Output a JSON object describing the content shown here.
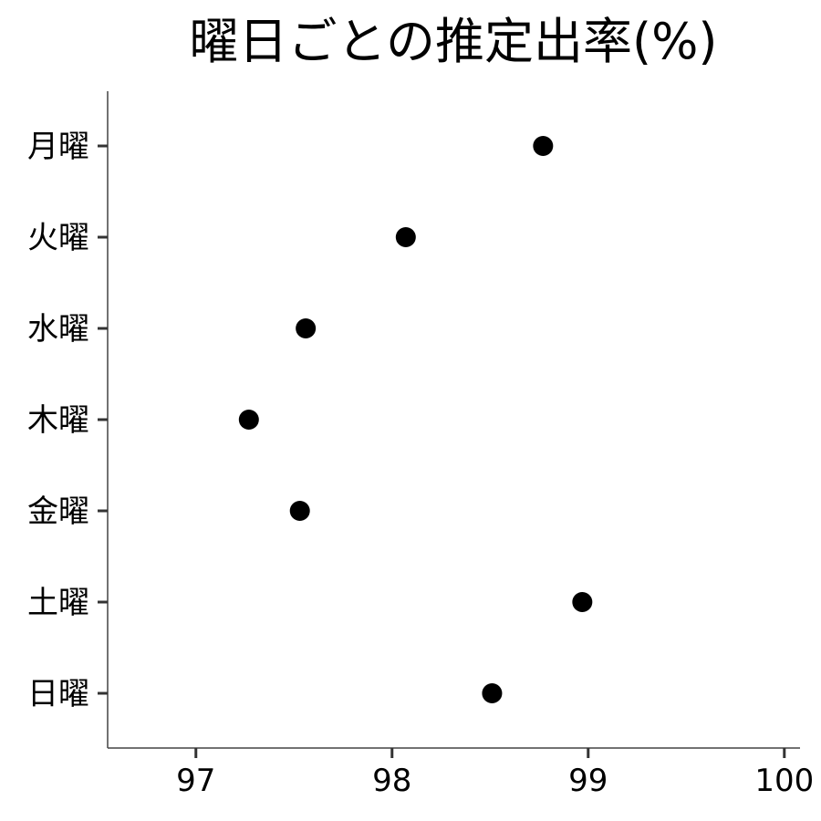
{
  "chart_data": {
    "type": "scatter",
    "title": "曜日ごとの推定出率(%)",
    "xlabel": "",
    "ylabel": "",
    "xlim": [
      96.55,
      100.08
    ],
    "x_ticks": [
      "97",
      "98",
      "99",
      "100"
    ],
    "grid": false,
    "legend": "none",
    "point_color": "#000000",
    "categories": [
      "月曜",
      "火曜",
      "水曜",
      "木曜",
      "金曜",
      "土曜",
      "日曜"
    ],
    "values": [
      98.77,
      98.07,
      97.56,
      97.27,
      97.53,
      98.97,
      98.51
    ]
  }
}
